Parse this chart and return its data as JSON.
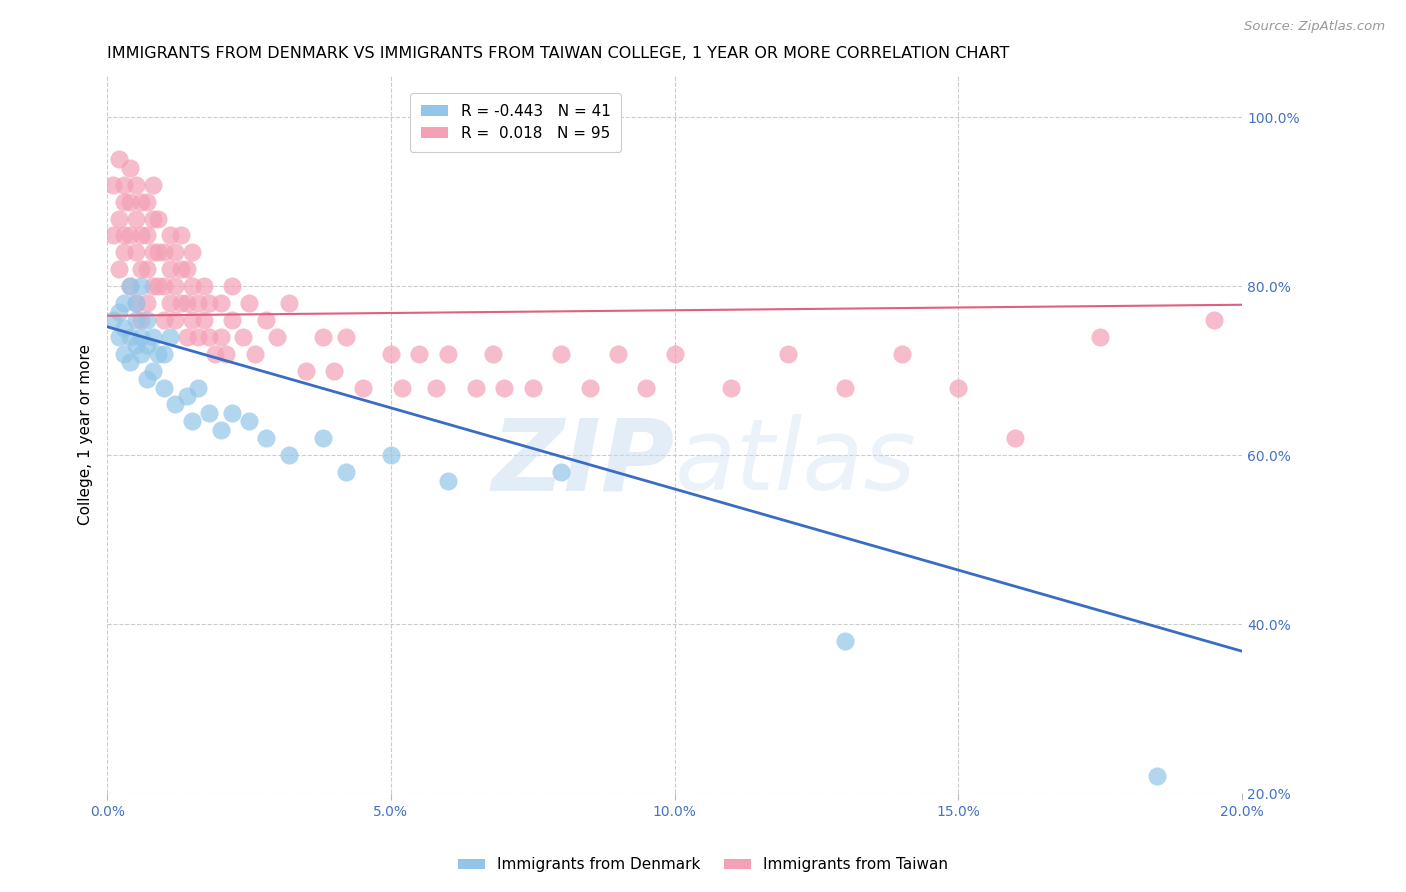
{
  "title": "IMMIGRANTS FROM DENMARK VS IMMIGRANTS FROM TAIWAN COLLEGE, 1 YEAR OR MORE CORRELATION CHART",
  "source": "Source: ZipAtlas.com",
  "ylabel": "College, 1 year or more",
  "xlim": [
    0.0,
    0.2
  ],
  "ylim": [
    0.2,
    1.05
  ],
  "xtick_labels": [
    "0.0%",
    "",
    "5.0%",
    "",
    "10.0%",
    "",
    "15.0%",
    "",
    "20.0%"
  ],
  "xtick_vals": [
    0.0,
    0.025,
    0.05,
    0.075,
    0.1,
    0.125,
    0.15,
    0.175,
    0.2
  ],
  "xtick_display": [
    "0.0%",
    "5.0%",
    "10.0%",
    "15.0%",
    "20.0%"
  ],
  "xtick_display_vals": [
    0.0,
    0.05,
    0.1,
    0.15,
    0.2
  ],
  "ytick_labels": [
    "100.0%",
    "80.0%",
    "60.0%",
    "40.0%",
    "20.0%"
  ],
  "ytick_vals": [
    1.0,
    0.8,
    0.6,
    0.4,
    0.2
  ],
  "legend_denmark": "Immigrants from Denmark",
  "legend_taiwan": "Immigrants from Taiwan",
  "R_denmark": -0.443,
  "N_denmark": 41,
  "R_taiwan": 0.018,
  "N_taiwan": 95,
  "denmark_color": "#92C5E8",
  "taiwan_color": "#F4A0B5",
  "denmark_line_color": "#3A6CC4",
  "taiwan_line_color": "#E06080",
  "background_color": "#FFFFFF",
  "title_fontsize": 11.5,
  "source_fontsize": 9.5,
  "axis_label_fontsize": 11,
  "tick_fontsize": 10,
  "legend_fontsize": 11,
  "denmark_x": [
    0.001,
    0.002,
    0.002,
    0.003,
    0.003,
    0.003,
    0.004,
    0.004,
    0.004,
    0.005,
    0.005,
    0.005,
    0.006,
    0.006,
    0.006,
    0.007,
    0.007,
    0.007,
    0.008,
    0.008,
    0.009,
    0.01,
    0.01,
    0.011,
    0.012,
    0.014,
    0.015,
    0.016,
    0.018,
    0.02,
    0.022,
    0.025,
    0.028,
    0.032,
    0.038,
    0.042,
    0.05,
    0.06,
    0.08,
    0.13,
    0.185
  ],
  "denmark_y": [
    0.76,
    0.74,
    0.77,
    0.72,
    0.78,
    0.75,
    0.8,
    0.74,
    0.71,
    0.76,
    0.73,
    0.78,
    0.72,
    0.74,
    0.8,
    0.69,
    0.73,
    0.76,
    0.7,
    0.74,
    0.72,
    0.68,
    0.72,
    0.74,
    0.66,
    0.67,
    0.64,
    0.68,
    0.65,
    0.63,
    0.65,
    0.64,
    0.62,
    0.6,
    0.62,
    0.58,
    0.6,
    0.57,
    0.58,
    0.38,
    0.22
  ],
  "taiwan_x": [
    0.001,
    0.001,
    0.002,
    0.002,
    0.002,
    0.003,
    0.003,
    0.003,
    0.003,
    0.004,
    0.004,
    0.004,
    0.004,
    0.005,
    0.005,
    0.005,
    0.005,
    0.006,
    0.006,
    0.006,
    0.006,
    0.007,
    0.007,
    0.007,
    0.007,
    0.008,
    0.008,
    0.008,
    0.008,
    0.009,
    0.009,
    0.009,
    0.01,
    0.01,
    0.01,
    0.011,
    0.011,
    0.011,
    0.012,
    0.012,
    0.012,
    0.013,
    0.013,
    0.013,
    0.014,
    0.014,
    0.014,
    0.015,
    0.015,
    0.015,
    0.016,
    0.016,
    0.017,
    0.017,
    0.018,
    0.018,
    0.019,
    0.02,
    0.02,
    0.021,
    0.022,
    0.022,
    0.024,
    0.025,
    0.026,
    0.028,
    0.03,
    0.032,
    0.035,
    0.038,
    0.04,
    0.042,
    0.045,
    0.05,
    0.052,
    0.055,
    0.058,
    0.06,
    0.065,
    0.068,
    0.07,
    0.075,
    0.08,
    0.085,
    0.09,
    0.095,
    0.1,
    0.11,
    0.12,
    0.13,
    0.14,
    0.15,
    0.16,
    0.175,
    0.195
  ],
  "taiwan_y": [
    0.86,
    0.92,
    0.82,
    0.88,
    0.95,
    0.84,
    0.9,
    0.86,
    0.92,
    0.8,
    0.86,
    0.9,
    0.94,
    0.78,
    0.84,
    0.88,
    0.92,
    0.76,
    0.82,
    0.86,
    0.9,
    0.78,
    0.82,
    0.86,
    0.9,
    0.8,
    0.84,
    0.88,
    0.92,
    0.8,
    0.84,
    0.88,
    0.76,
    0.8,
    0.84,
    0.78,
    0.82,
    0.86,
    0.76,
    0.8,
    0.84,
    0.78,
    0.82,
    0.86,
    0.74,
    0.78,
    0.82,
    0.76,
    0.8,
    0.84,
    0.74,
    0.78,
    0.76,
    0.8,
    0.74,
    0.78,
    0.72,
    0.74,
    0.78,
    0.72,
    0.76,
    0.8,
    0.74,
    0.78,
    0.72,
    0.76,
    0.74,
    0.78,
    0.7,
    0.74,
    0.7,
    0.74,
    0.68,
    0.72,
    0.68,
    0.72,
    0.68,
    0.72,
    0.68,
    0.72,
    0.68,
    0.68,
    0.72,
    0.68,
    0.72,
    0.68,
    0.72,
    0.68,
    0.72,
    0.68,
    0.72,
    0.68,
    0.62,
    0.74,
    0.76
  ],
  "denmark_trend_x": [
    0.0,
    0.2
  ],
  "denmark_trend_y": [
    0.752,
    0.368
  ],
  "taiwan_trend_x": [
    0.0,
    0.2
  ],
  "taiwan_trend_y": [
    0.765,
    0.778
  ],
  "grid_color": "#CCCCCC",
  "tick_color": "#4472C4",
  "ytick_right_color": "#4472C4"
}
